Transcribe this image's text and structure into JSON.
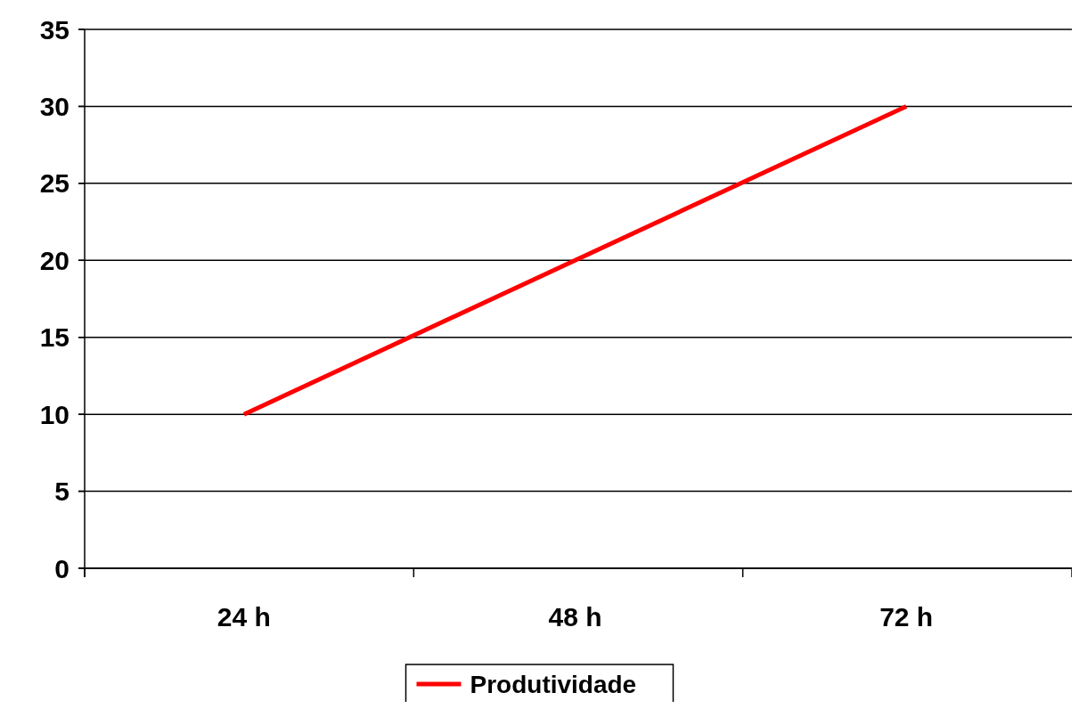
{
  "chart_data": {
    "type": "line",
    "categories": [
      "24 h",
      "48 h",
      "72 h"
    ],
    "series": [
      {
        "name": "Produtividade",
        "color": "#ff0000",
        "values": [
          10,
          20,
          30
        ]
      }
    ],
    "ylim": [
      0,
      35
    ],
    "yticks": [
      0,
      5,
      10,
      15,
      20,
      25,
      30,
      35
    ],
    "grid": "y",
    "legend": "bottom",
    "marker": "none",
    "line_style": "solid"
  }
}
